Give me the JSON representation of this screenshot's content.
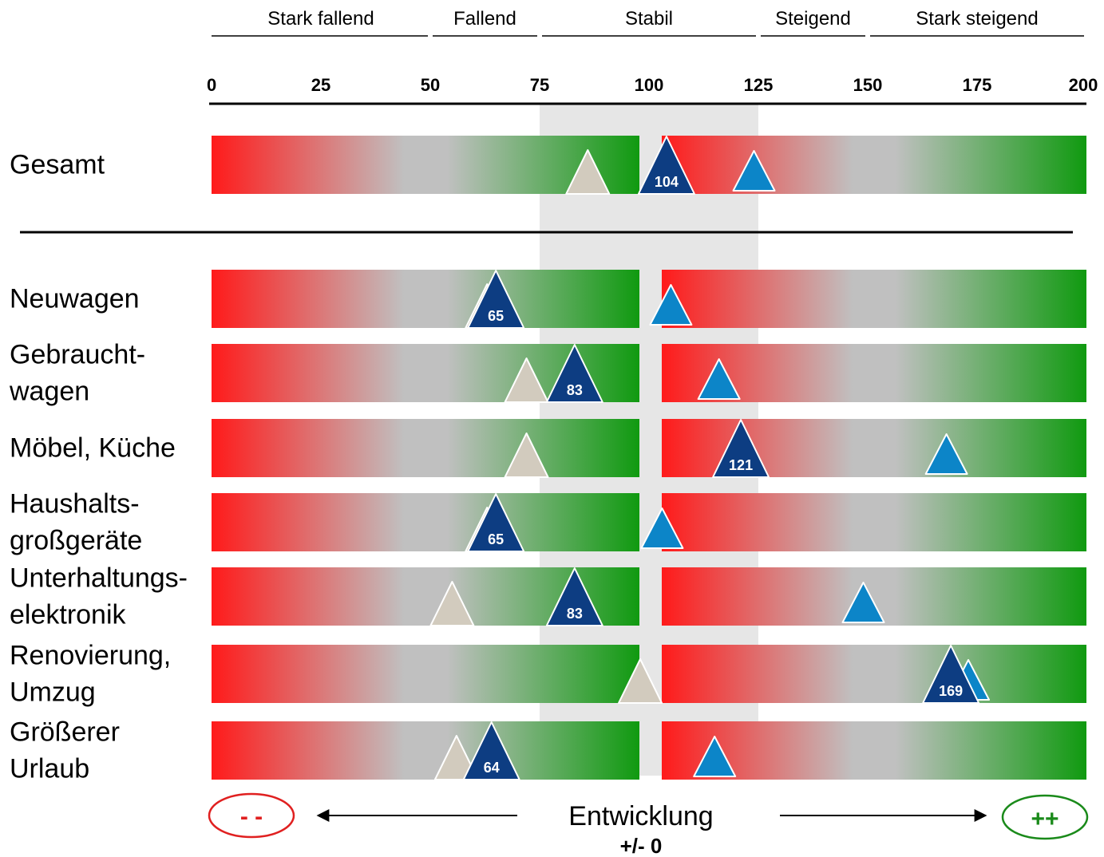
{
  "chart_data": {
    "type": "marker-bar",
    "title": "",
    "xlim": [
      0,
      200
    ],
    "x_ticks": [
      "0",
      "25",
      "50",
      "75",
      "100",
      "125",
      "150",
      "175",
      "200"
    ],
    "stable_band": [
      75,
      125
    ],
    "bands": [
      {
        "label": "Stark fallend",
        "range": [
          0,
          50
        ]
      },
      {
        "label": "Fallend",
        "range": [
          50,
          75
        ]
      },
      {
        "label": "Stabil",
        "range": [
          75,
          125
        ]
      },
      {
        "label": "Steigend",
        "range": [
          125,
          150
        ]
      },
      {
        "label": "Stark steigend",
        "range": [
          150,
          200
        ]
      }
    ],
    "categories": [
      {
        "label": [
          "Gesamt"
        ],
        "current": 104,
        "current_label": "104",
        "light": 86,
        "blue": 124
      },
      {
        "label": [
          "Neuwagen"
        ],
        "current": 65,
        "current_label": "65",
        "light": 63,
        "blue": 105
      },
      {
        "label": [
          "Gebraucht-",
          "wagen"
        ],
        "current": 83,
        "current_label": "83",
        "light": 72,
        "blue": 116
      },
      {
        "label": [
          "Möbel, Küche"
        ],
        "current": 121,
        "current_label": "121",
        "light": 72,
        "blue": 168
      },
      {
        "label": [
          "Haushalts-",
          "großgeräte"
        ],
        "current": 65,
        "current_label": "65",
        "light": 63,
        "blue": 103
      },
      {
        "label": [
          "Unterhaltungs-",
          "elektronik"
        ],
        "current": 83,
        "current_label": "83",
        "light": 55,
        "blue": 149
      },
      {
        "label": [
          "Renovierung,",
          "Umzug"
        ],
        "current": 169,
        "current_label": "169",
        "light": 98,
        "blue": 173
      },
      {
        "label": [
          "Größerer",
          "Urlaub"
        ],
        "current": 64,
        "current_label": "64",
        "light": 56,
        "blue": 115
      }
    ],
    "footer": {
      "left_badge": "- -",
      "right_badge": "++",
      "center_label": "Entwicklung",
      "center_sublabel": "+/- 0"
    },
    "colors": {
      "red": "#ff1a1a",
      "gray": "#c0c0c0",
      "green": "#109a10",
      "stable_band": "#e6e6e6",
      "marker_current": "#0d3d82",
      "marker_blue": "#0c85c8",
      "marker_light": "#d2cbbe",
      "badge_left": "#e02020",
      "badge_right": "#1a8a1a"
    }
  }
}
